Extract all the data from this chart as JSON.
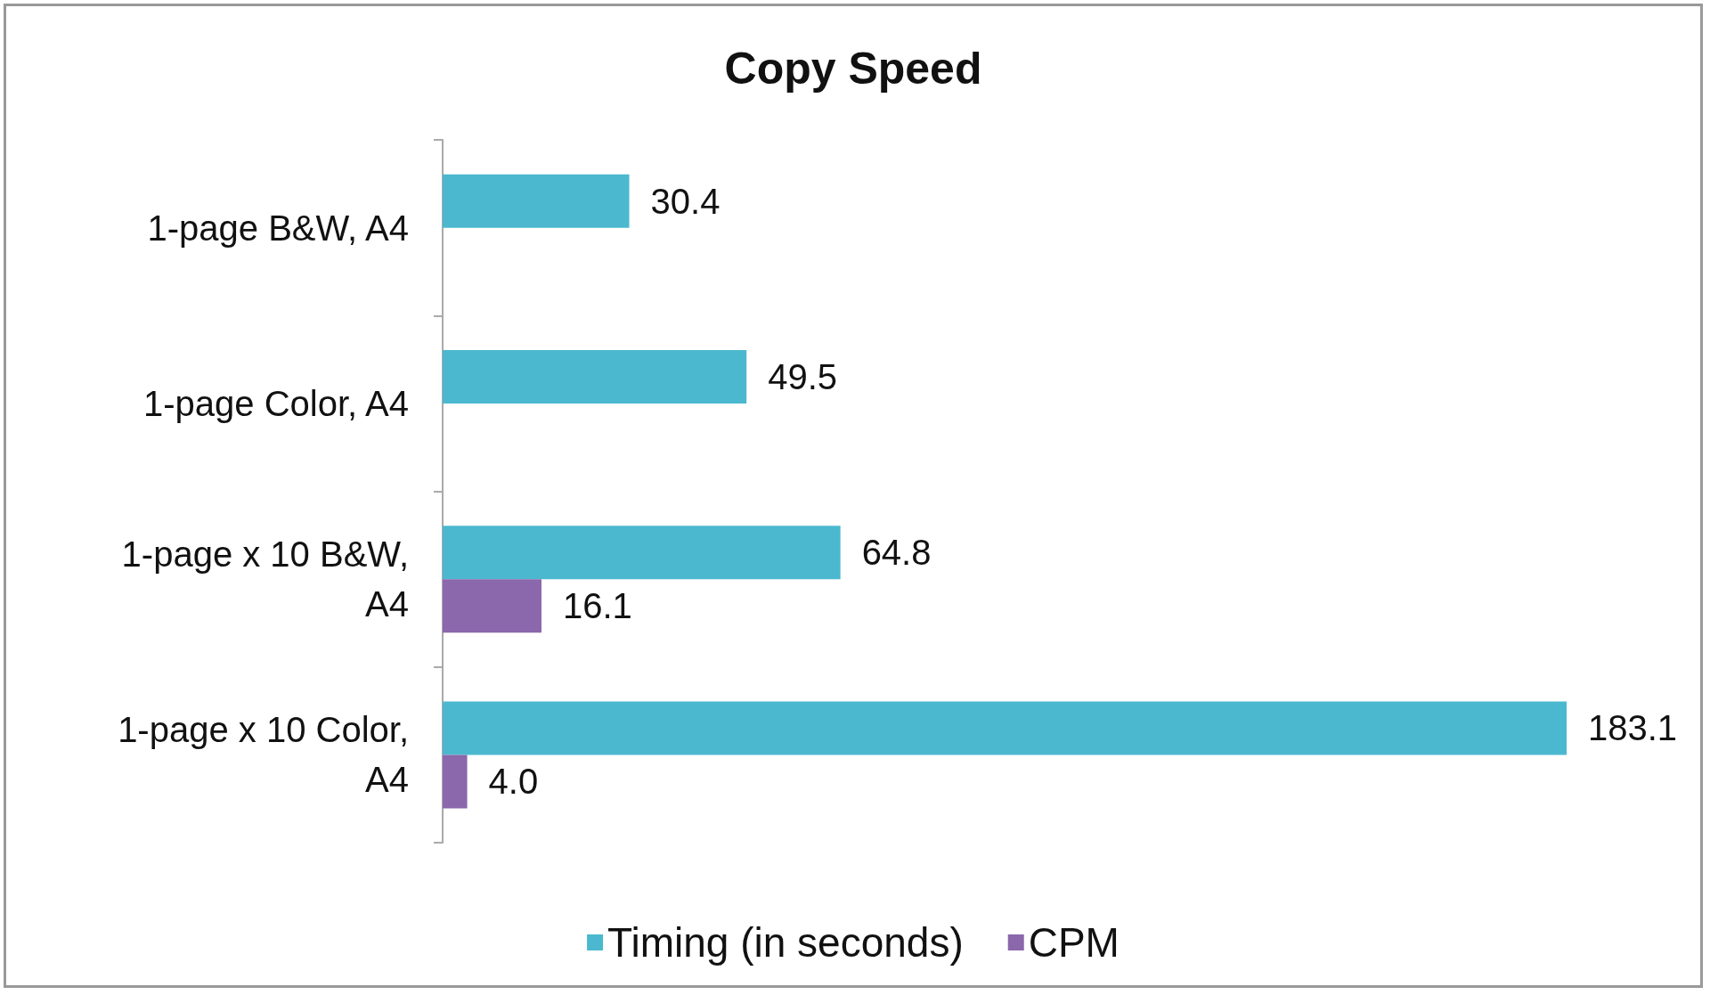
{
  "chart_data": {
    "type": "bar",
    "title": "Copy Speed",
    "orientation": "horizontal",
    "categories": [
      "1-page B&W, A4",
      "1-page Color, A4",
      "1-page x 10 B&W,\nA4",
      "1-page x 10 Color,\nA4"
    ],
    "series": [
      {
        "name": "Timing (in seconds)",
        "color": "#4bb8cf",
        "values": [
          30.4,
          49.5,
          64.8,
          183.1
        ],
        "value_labels": [
          "30.4",
          "49.5",
          "64.8",
          "183.1"
        ]
      },
      {
        "name": "CPM",
        "color": "#8b67ab",
        "values": [
          null,
          null,
          16.1,
          4.0
        ],
        "value_labels": [
          null,
          null,
          "16.1",
          "4.0"
        ]
      }
    ],
    "legend": "bottom"
  }
}
